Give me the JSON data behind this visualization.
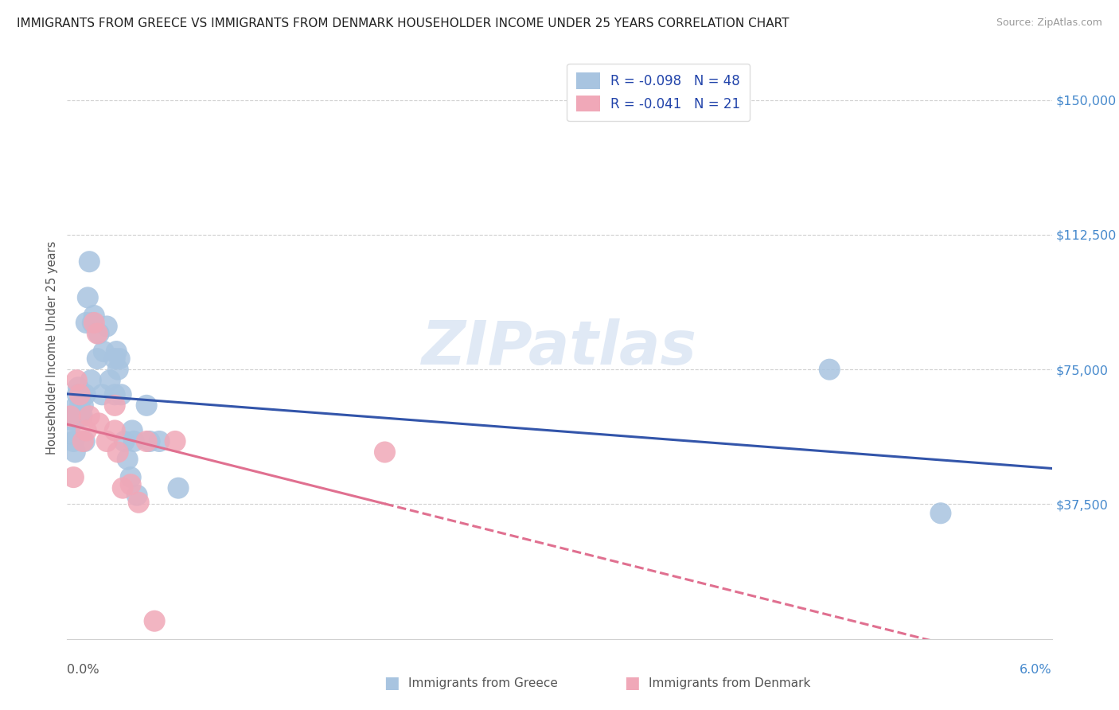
{
  "title": "IMMIGRANTS FROM GREECE VS IMMIGRANTS FROM DENMARK HOUSEHOLDER INCOME UNDER 25 YEARS CORRELATION CHART",
  "source": "Source: ZipAtlas.com",
  "ylabel": "Householder Income Under 25 years",
  "xlim": [
    0.0,
    0.062
  ],
  "ylim": [
    0,
    162000
  ],
  "yticks": [
    0,
    37500,
    75000,
    112500,
    150000
  ],
  "ytick_labels": [
    "",
    "$37,500",
    "$75,000",
    "$112,500",
    "$150,000"
  ],
  "watermark": "ZIPatlas",
  "legend_greece_r": "-0.098",
  "legend_greece_n": "48",
  "legend_denmark_r": "-0.041",
  "legend_denmark_n": "21",
  "greece_color": "#a8c4e0",
  "denmark_color": "#f0a8b8",
  "greece_line_color": "#3355aa",
  "denmark_line_color": "#e07090",
  "greece_x": [
    0.0002,
    0.00025,
    0.0003,
    0.0004,
    0.00045,
    0.0005,
    0.00055,
    0.0006,
    0.00065,
    0.0007,
    0.00075,
    0.0008,
    0.00085,
    0.0009,
    0.00095,
    0.001,
    0.0011,
    0.00115,
    0.0012,
    0.0013,
    0.0014,
    0.0015,
    0.0016,
    0.0017,
    0.0019,
    0.002,
    0.0022,
    0.0023,
    0.0025,
    0.0027,
    0.003,
    0.003,
    0.0031,
    0.0032,
    0.0033,
    0.0034,
    0.0036,
    0.0038,
    0.004,
    0.0041,
    0.0042,
    0.0044,
    0.005,
    0.0052,
    0.0058,
    0.007,
    0.048,
    0.055
  ],
  "greece_y": [
    57000,
    61000,
    62000,
    55000,
    62000,
    52000,
    61000,
    65000,
    68000,
    70000,
    62000,
    65000,
    62000,
    68000,
    62000,
    65000,
    55000,
    68000,
    88000,
    95000,
    105000,
    72000,
    88000,
    90000,
    78000,
    85000,
    68000,
    80000,
    87000,
    72000,
    78000,
    68000,
    80000,
    75000,
    78000,
    68000,
    55000,
    50000,
    45000,
    58000,
    55000,
    40000,
    65000,
    55000,
    55000,
    42000,
    75000,
    35000
  ],
  "denmark_x": [
    0.0002,
    0.0004,
    0.0006,
    0.0008,
    0.001,
    0.0012,
    0.0014,
    0.0017,
    0.0019,
    0.002,
    0.0025,
    0.003,
    0.003,
    0.0032,
    0.0035,
    0.004,
    0.0045,
    0.005,
    0.0055,
    0.0068,
    0.02
  ],
  "denmark_y": [
    62000,
    45000,
    72000,
    68000,
    55000,
    58000,
    62000,
    88000,
    85000,
    60000,
    55000,
    65000,
    58000,
    52000,
    42000,
    43000,
    38000,
    55000,
    5000,
    55000,
    52000
  ],
  "background_color": "#ffffff",
  "grid_color": "#d0d0d0"
}
